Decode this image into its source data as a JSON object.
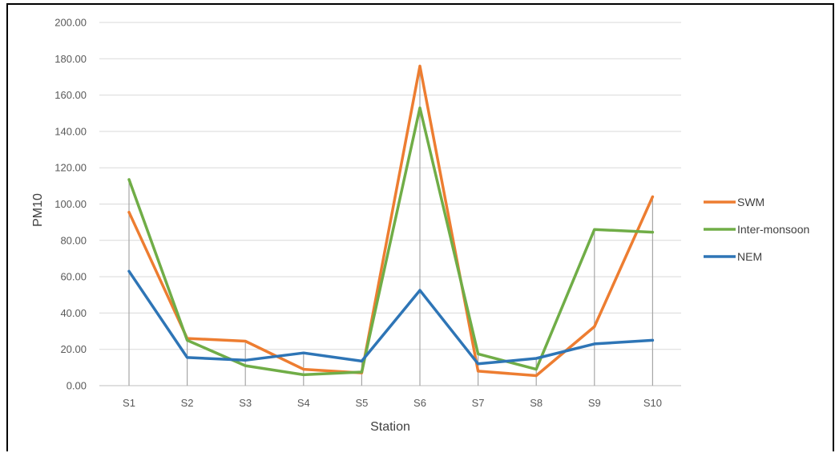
{
  "chart_data": {
    "type": "line",
    "title": "",
    "xlabel": "Station",
    "ylabel": "PM10",
    "categories": [
      "S1",
      "S2",
      "S3",
      "S4",
      "S5",
      "S6",
      "S7",
      "S8",
      "S9",
      "S10"
    ],
    "ylim": [
      0,
      200
    ],
    "yticks": [
      "0.00",
      "20.00",
      "40.00",
      "60.00",
      "80.00",
      "100.00",
      "120.00",
      "140.00",
      "160.00",
      "180.00",
      "200.00"
    ],
    "grid": "horizontal",
    "drop_lines": true,
    "legend_position": "right",
    "series": [
      {
        "name": "SWM",
        "color": "#ED7D31",
        "values": [
          95.5,
          26.0,
          24.5,
          9.0,
          7.0,
          176.0,
          8.0,
          5.5,
          32.5,
          104.0
        ]
      },
      {
        "name": "Inter-monsoon",
        "color": "#70AD47",
        "values": [
          113.5,
          25.0,
          11.0,
          6.0,
          7.5,
          153.0,
          17.5,
          9.0,
          86.0,
          84.5
        ]
      },
      {
        "name": "NEM",
        "color": "#2E75B6",
        "values": [
          63.0,
          15.5,
          14.0,
          18.0,
          13.5,
          52.5,
          12.0,
          15.0,
          23.0,
          25.0
        ]
      }
    ]
  }
}
